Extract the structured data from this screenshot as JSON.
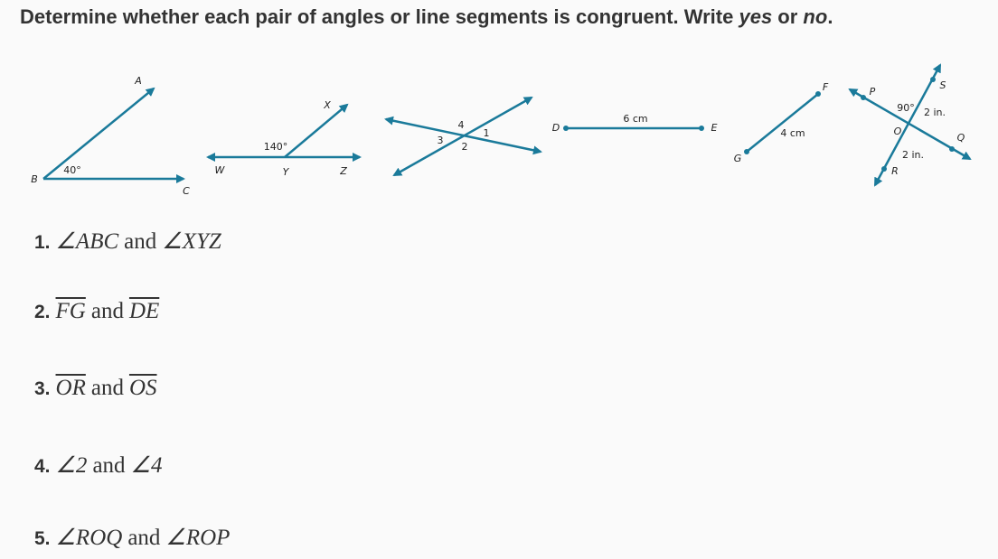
{
  "instruction": {
    "lead": "Determine whether each pair of angles or line segments is congruent. Write ",
    "yes": "yes",
    "or": " or ",
    "no": "no",
    "end": "."
  },
  "figures": {
    "abc": {
      "a": "A",
      "b": "B",
      "c": "C",
      "angle": "40°"
    },
    "xyz": {
      "x": "X",
      "w": "W",
      "y": "Y",
      "z": "Z",
      "angle": "140°"
    },
    "vertical": {
      "one": "1",
      "two": "2",
      "three": "3",
      "four": "4"
    },
    "de": {
      "d": "D",
      "e": "E",
      "length": "6 cm"
    },
    "fg": {
      "f": "F",
      "g": "G",
      "length": "4 cm"
    },
    "pq": {
      "p": "P",
      "s": "S",
      "o": "O",
      "q": "Q",
      "r": "R",
      "angle": "90°",
      "os": "2 in.",
      "or": "2 in."
    }
  },
  "questions": [
    {
      "number": "1.",
      "left": "∠ABC",
      "joiner": "and",
      "right": "∠XYZ",
      "overline": false
    },
    {
      "number": "2.",
      "left": "FG",
      "joiner": "and",
      "right": "DE",
      "overline": true
    },
    {
      "number": "3.",
      "left": "OR",
      "joiner": "and",
      "right": "OS",
      "overline": true
    },
    {
      "number": "4.",
      "left": "∠2",
      "joiner": "and",
      "right": "∠4",
      "overline": false
    },
    {
      "number": "5.",
      "left": "∠ROQ",
      "joiner": "and",
      "right": "∠ROP",
      "overline": false
    }
  ]
}
